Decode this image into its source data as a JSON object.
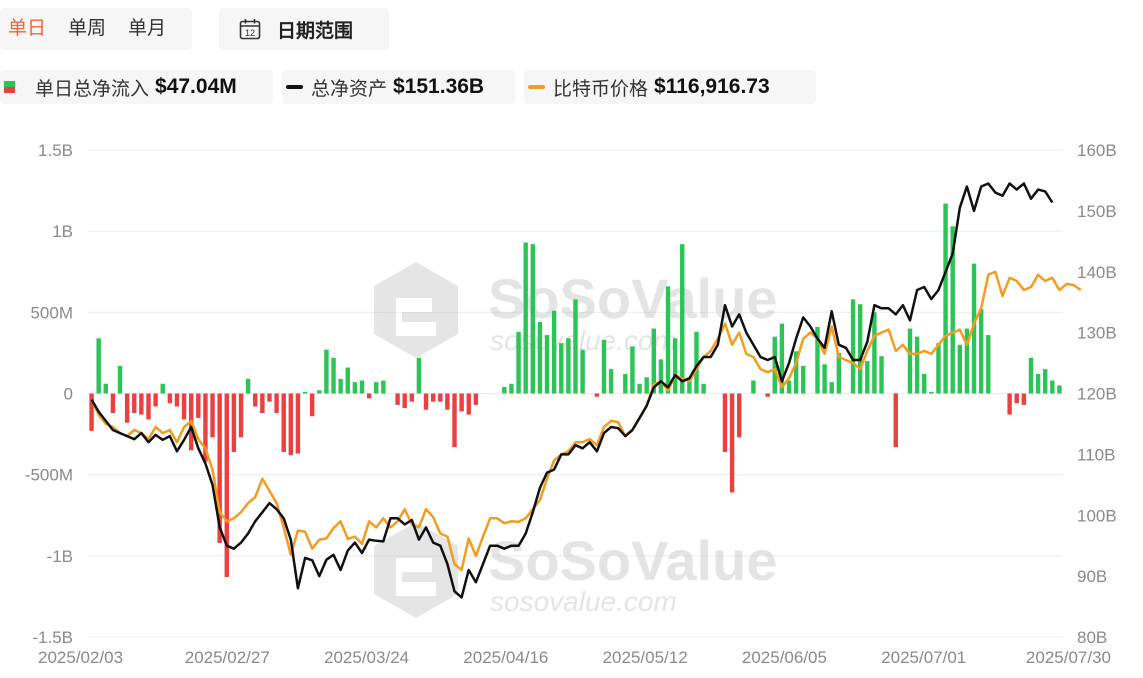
{
  "tabs": [
    {
      "label": "单日",
      "active": true
    },
    {
      "label": "单周",
      "active": false
    },
    {
      "label": "单月",
      "active": false
    }
  ],
  "date_range": {
    "label": "日期范围",
    "icon": "calendar-icon",
    "icon_text": "12"
  },
  "legend": {
    "flow": {
      "name": "单日总净流入",
      "value": "$47.04M"
    },
    "assets": {
      "name": "总净资产",
      "value": "$151.36B",
      "color": "#111111"
    },
    "btc": {
      "name": "比特币价格",
      "value": "$116,916.73",
      "color": "#f39c1f"
    }
  },
  "watermark": {
    "brand": "SoSoValue",
    "url": "sosovalue.com"
  },
  "chart_data": {
    "type": "bar",
    "x_tick_labels": [
      "2025/02/03",
      "2025/02/27",
      "2025/03/24",
      "2025/04/16",
      "2025/05/12",
      "2025/06/05",
      "2025/07/01",
      "2025/07/30"
    ],
    "y_left": {
      "ticks": [
        "1.5B",
        "1B",
        "500M",
        "0",
        "-500M",
        "-1B",
        "-1.5B"
      ],
      "range": [
        -1.5,
        1.5
      ],
      "unit": "B"
    },
    "y_right": {
      "ticks": [
        "160B",
        "150B",
        "140B",
        "130B",
        "120B",
        "110B",
        "100B",
        "90B",
        "80B"
      ],
      "range": [
        80,
        160
      ],
      "unit": "B"
    },
    "colors": {
      "inflow": "#2cc357",
      "outflow": "#e94040",
      "assets": "#111111",
      "btc": "#f39c1f"
    },
    "grid": "horizontal",
    "series": [
      {
        "key": "net_inflow",
        "values": [
          -0.23,
          0.34,
          0.06,
          -0.12,
          0.17,
          -0.18,
          -0.12,
          -0.13,
          -0.16,
          -0.08,
          0.06,
          -0.06,
          -0.08,
          -0.16,
          -0.35,
          -0.15,
          -0.42,
          -0.27,
          -0.92,
          -1.13,
          -0.36,
          -0.27,
          0.09,
          -0.08,
          -0.12,
          -0.05,
          -0.12,
          -0.36,
          -0.38,
          -0.37,
          0.01,
          -0.14,
          0.02,
          0.27,
          0.22,
          0.09,
          0.16,
          0.07,
          0.08,
          -0.03,
          0.07,
          0.08,
          0.0,
          -0.07,
          -0.09,
          -0.05,
          0.22,
          -0.1,
          -0.05,
          -0.05,
          -0.1,
          -0.33,
          -0.11,
          -0.13,
          -0.07,
          0.0,
          0.0,
          0.0,
          0.04,
          0.06,
          0.38,
          0.93,
          0.92,
          0.44,
          0.36,
          0.51,
          0.31,
          0.34,
          0.58,
          0.27,
          0.0,
          -0.02,
          0.33,
          0.15,
          0.0,
          0.12,
          0.29,
          0.06,
          0.1,
          0.4,
          0.21,
          0.66,
          0.34,
          0.92,
          0.1,
          0.38,
          0.06,
          0.0,
          0.0,
          -0.36,
          -0.61,
          -0.27,
          0.0,
          0.08,
          0.0,
          -0.02,
          0.35,
          0.43,
          0.08,
          0.26,
          0.17,
          0.0,
          0.41,
          0.18,
          0.07,
          0.25,
          0.0,
          0.58,
          0.55,
          0.2,
          0.5,
          0.23,
          0.0,
          -0.33,
          0.0,
          0.4,
          0.35,
          0.12,
          0.01,
          0.31,
          1.17,
          1.03,
          0.3,
          0.4,
          0.8,
          0.52,
          0.36,
          0.0,
          0.0,
          -0.13,
          -0.06,
          -0.07,
          0.22,
          0.12,
          0.15,
          0.08,
          0.05
        ]
      },
      {
        "key": "total_net_assets",
        "name": "总净资产",
        "values": [
          119,
          117,
          115.5,
          114,
          113.5,
          113,
          112.5,
          113.5,
          112,
          113.2,
          112.4,
          113,
          110.5,
          112.4,
          114.5,
          111,
          108.5,
          105,
          98,
          95,
          94.5,
          95.5,
          97,
          99,
          100.5,
          102,
          101,
          99.5,
          96,
          88,
          93,
          92.6,
          90,
          92.7,
          93.5,
          91,
          94.2,
          95.5,
          93.8,
          96,
          95.8,
          95.7,
          99.5,
          99.5,
          98.5,
          99.2,
          96,
          98,
          95.5,
          95,
          92,
          87.5,
          86.5,
          91,
          89,
          92,
          95,
          95,
          94.5,
          95,
          95,
          97,
          100.5,
          104.5,
          107,
          107.5,
          110,
          110,
          111.5,
          111,
          112,
          110.5,
          113.5,
          114.5,
          114.3,
          113,
          114,
          116,
          118,
          121,
          122,
          121,
          123,
          122,
          122.5,
          124.5,
          126,
          126,
          128,
          134.5,
          131,
          133,
          130,
          128,
          126,
          125.5,
          126,
          122,
          125,
          129,
          132.5,
          131,
          129,
          127.5,
          133.5,
          128,
          127.5,
          125.5,
          125.5,
          128.5,
          134.5,
          134,
          134,
          133,
          134.5,
          132,
          137,
          137.5,
          135.5,
          137,
          140,
          143,
          150.5,
          154,
          150,
          154,
          154.5,
          153,
          152.5,
          154.5,
          153.5,
          154.5,
          152,
          153.5,
          153.2,
          151.4
        ]
      },
      {
        "key": "btc_price",
        "name": "比特币价格",
        "values": [
          119,
          116.5,
          115,
          114.5,
          113.5,
          113,
          114,
          113.5,
          112.5,
          114.5,
          113.5,
          114,
          112,
          114.5,
          115.5,
          112.5,
          111,
          107.5,
          100.5,
          99,
          99.5,
          100.5,
          102,
          103,
          106,
          104,
          102,
          98,
          93.5,
          97.5,
          97.3,
          94.5,
          96,
          96.2,
          97.9,
          99,
          96.1,
          96.5,
          95.3,
          99,
          98,
          99.5,
          98,
          99,
          101,
          98.5,
          98,
          101,
          99.7,
          97,
          96.5,
          92,
          91,
          96.2,
          93.3,
          96.5,
          99.5,
          99.5,
          98.7,
          99,
          98.9,
          99.5,
          101,
          102.5,
          106,
          109,
          110,
          110.5,
          112,
          112,
          112.5,
          111.5,
          114.5,
          115.5,
          115.3,
          113,
          114,
          116,
          118,
          121.5,
          122,
          120.5,
          123,
          122.5,
          122,
          124,
          126,
          127,
          129,
          131.5,
          128,
          130,
          126.5,
          126,
          124,
          123.5,
          124,
          121,
          122.5,
          125,
          129,
          130,
          129,
          126.5,
          131,
          126,
          125.5,
          125,
          124,
          127,
          129.5,
          130,
          130.5,
          127,
          128,
          126.5,
          126.5,
          127,
          126.5,
          128,
          129.5,
          130,
          130.5,
          128,
          131.5,
          134,
          139.5,
          140,
          136,
          139,
          138.5,
          137,
          137.5,
          139.5,
          138.5,
          139,
          137,
          138,
          137.8,
          137
        ]
      }
    ]
  }
}
